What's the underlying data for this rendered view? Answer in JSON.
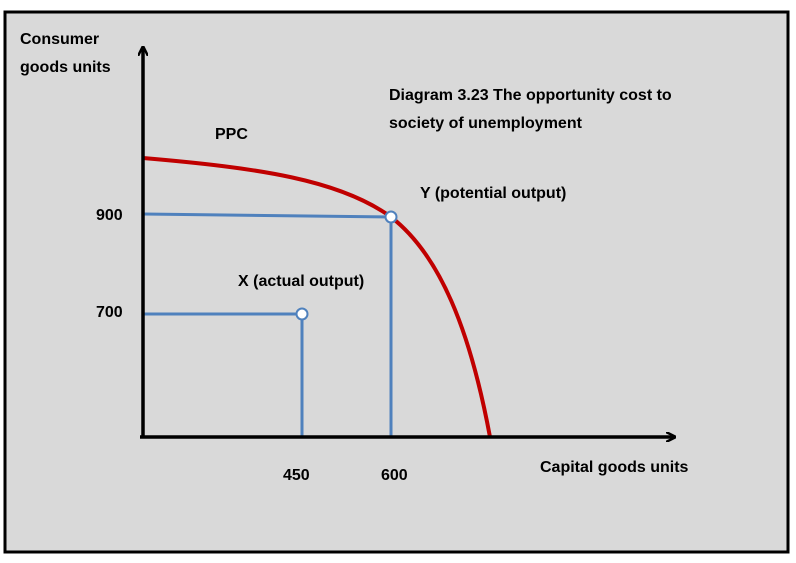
{
  "title": [
    "Diagram 3.23 The opportunity cost to",
    "society of unemployment"
  ],
  "axes": {
    "y_label": [
      "Consumer",
      "goods units"
    ],
    "x_label": "Capital goods units"
  },
  "curve_label": "PPC",
  "points": [
    {
      "label": "Y (potential output)",
      "x_tick": "600",
      "y_tick": "900"
    },
    {
      "label": "X (actual output)",
      "x_tick": "450",
      "y_tick": "700"
    }
  ]
}
